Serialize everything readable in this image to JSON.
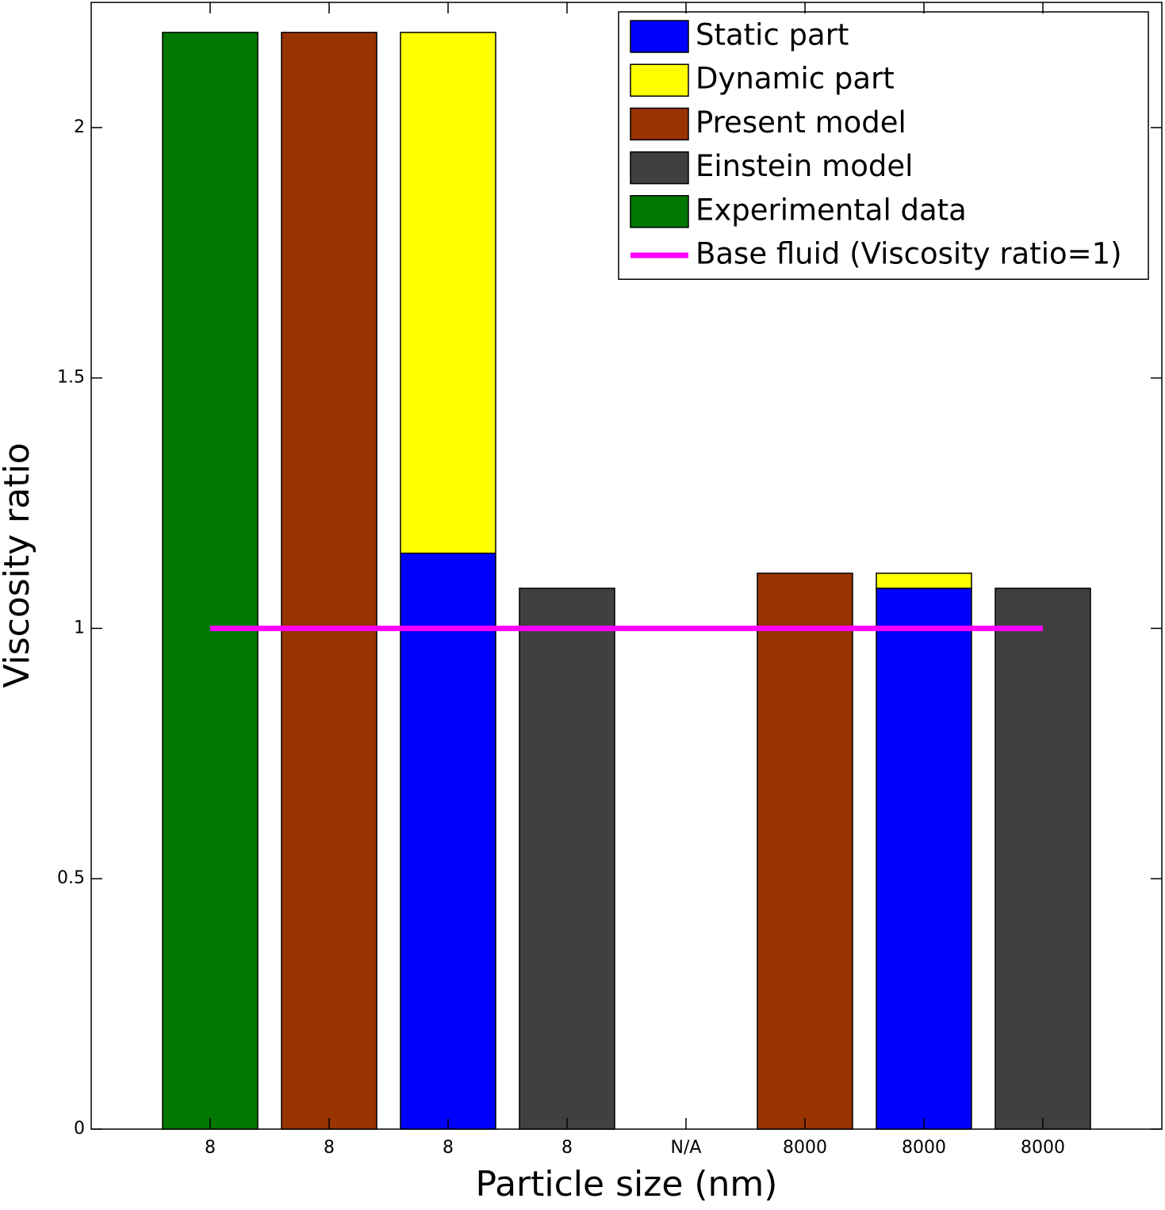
{
  "chart_data": {
    "type": "bar",
    "stacked": true,
    "xlabel": "Particle size (nm)",
    "ylabel": "Viscosity ratio",
    "categories": [
      "8",
      "8",
      "8",
      "8",
      "N/A",
      "8000",
      "8000",
      "8000"
    ],
    "series": [
      {
        "name": "Static part",
        "color": "#0000ff",
        "values": [
          null,
          null,
          1.15,
          null,
          null,
          null,
          1.08,
          null
        ]
      },
      {
        "name": "Dynamic part",
        "color": "#ffff00",
        "values": [
          null,
          null,
          1.04,
          null,
          null,
          null,
          0.03,
          null
        ]
      },
      {
        "name": "Present model",
        "color": "#993300",
        "values": [
          null,
          2.19,
          null,
          null,
          null,
          1.11,
          null,
          null
        ]
      },
      {
        "name": "Einstein model",
        "color": "#404040",
        "values": [
          null,
          null,
          null,
          1.08,
          null,
          null,
          null,
          1.08
        ]
      },
      {
        "name": "Experimental data",
        "color": "#007700",
        "values": [
          2.19,
          null,
          null,
          null,
          null,
          null,
          null,
          null
        ]
      },
      {
        "name": "Base fluid (Viscosity ratio=1)",
        "color": "#ff00ff",
        "type": "line",
        "values": [
          1,
          1,
          1,
          1,
          1,
          1,
          1,
          1
        ]
      }
    ],
    "ylim": [
      0,
      2.25
    ],
    "yticks": [
      0,
      0.5,
      1,
      1.5,
      2
    ],
    "legend": "upper right"
  }
}
